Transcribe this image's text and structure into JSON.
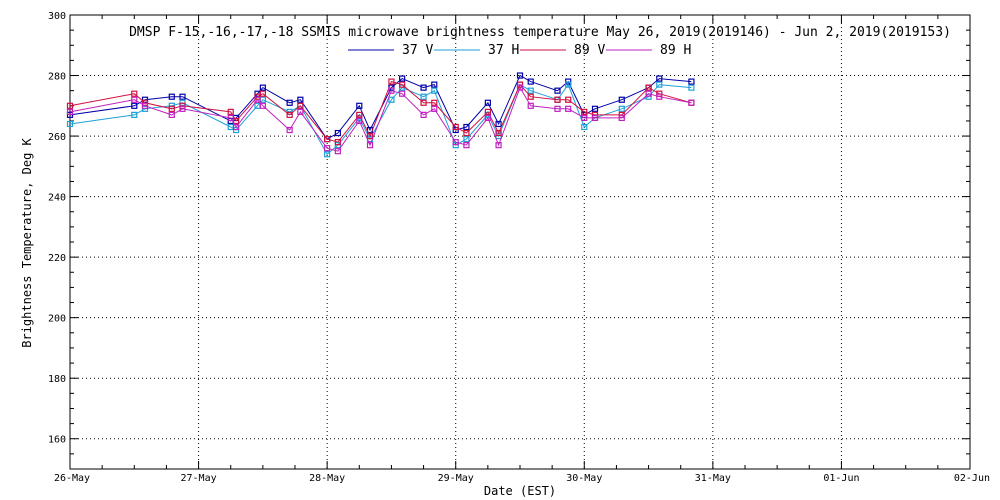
{
  "chart_data": {
    "type": "line",
    "title": "DMSP F-15,-16,-17,-18 SSMIS microwave brightness temperature May 26, 2019(2019146) - Jun  2, 2019(2019153)",
    "xlabel": "Date (EST)",
    "ylabel": "Brightness Temperature, Deg K",
    "xlim": [
      "2019-05-26T00:00",
      "2019-06-02T00:00"
    ],
    "x_ticks": [
      "26-May",
      "27-May",
      "28-May",
      "29-May",
      "30-May",
      "31-May",
      "01-Jun",
      "02-Jun"
    ],
    "ylim": [
      150,
      300
    ],
    "y_ticks": [
      160,
      180,
      200,
      220,
      240,
      260,
      280,
      300
    ],
    "grid": true,
    "legend_position": "top",
    "marker": "square",
    "x": [
      "2019-05-26T00:00",
      "2019-05-26T12:00",
      "2019-05-26T14:00",
      "2019-05-26T19:00",
      "2019-05-26T21:00",
      "2019-05-27T06:00",
      "2019-05-27T07:00",
      "2019-05-27T11:00",
      "2019-05-27T12:00",
      "2019-05-27T17:00",
      "2019-05-27T19:00",
      "2019-05-28T00:00",
      "2019-05-28T02:00",
      "2019-05-28T06:00",
      "2019-05-28T08:00",
      "2019-05-28T12:00",
      "2019-05-28T14:00",
      "2019-05-28T18:00",
      "2019-05-28T20:00",
      "2019-05-29T00:00",
      "2019-05-29T02:00",
      "2019-05-29T06:00",
      "2019-05-29T08:00",
      "2019-05-29T12:00",
      "2019-05-29T14:00",
      "2019-05-29T19:00",
      "2019-05-29T21:00",
      "2019-05-30T00:00",
      "2019-05-30T02:00",
      "2019-05-30T07:00",
      "2019-05-30T12:00",
      "2019-05-30T14:00",
      "2019-05-30T20:00"
    ],
    "series": [
      {
        "name": "37 V",
        "color": "#0000aa",
        "values": [
          267,
          270,
          272,
          273,
          273,
          265,
          266,
          274,
          276,
          271,
          272,
          259,
          261,
          270,
          262,
          276,
          279,
          276,
          277,
          262,
          263,
          271,
          264,
          280,
          278,
          275,
          278,
          267,
          269,
          272,
          276,
          279,
          278
        ]
      },
      {
        "name": "37 H",
        "color": "#1ea0d8",
        "values": [
          264,
          267,
          269,
          270,
          271,
          263,
          262,
          270,
          272,
          268,
          270,
          254,
          257,
          266,
          259,
          272,
          276,
          273,
          275,
          257,
          259,
          267,
          260,
          277,
          275,
          272,
          277,
          263,
          266,
          269,
          273,
          277,
          276
        ]
      },
      {
        "name": "89 V",
        "color": "#d01040",
        "values": [
          270,
          274,
          271,
          269,
          270,
          268,
          265,
          273,
          274,
          267,
          270,
          259,
          258,
          267,
          260,
          278,
          277,
          271,
          271,
          263,
          261,
          268,
          261,
          277,
          273,
          272,
          272,
          268,
          267,
          267,
          276,
          274,
          271
        ]
      },
      {
        "name": "89 H",
        "color": "#c020c0",
        "values": [
          268,
          272,
          270,
          267,
          269,
          266,
          263,
          272,
          270,
          262,
          268,
          256,
          255,
          265,
          257,
          275,
          274,
          267,
          269,
          258,
          257,
          266,
          257,
          276,
          270,
          269,
          269,
          266,
          266,
          266,
          274,
          273,
          271
        ]
      }
    ]
  }
}
